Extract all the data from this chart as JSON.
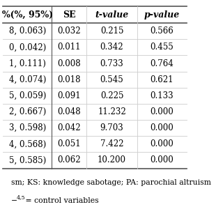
{
  "col_headers": [
    "%(%, 95%)",
    "SE",
    "t-value",
    "p-value"
  ],
  "col_headers_italic": [
    false,
    false,
    true,
    true
  ],
  "rows": [
    [
      "8, 0.063)",
      "0.032",
      "0.215",
      "0.566"
    ],
    [
      "0, 0.042)",
      "0.011",
      "0.342",
      "0.455"
    ],
    [
      "1, 0.111)",
      "0.008",
      "0.733",
      "0.764"
    ],
    [
      "4, 0.074)",
      "0.018",
      "0.545",
      "0.621"
    ],
    [
      "5, 0.059)",
      "0.091",
      "0.225",
      "0.133"
    ],
    [
      "2, 0.667)",
      "0.048",
      "11.232",
      "0.000"
    ],
    [
      "3, 0.598)",
      "0.042",
      "9.703",
      "0.000"
    ],
    [
      "4, 0.568)",
      "0.051",
      "7.422",
      "0.000"
    ],
    [
      "5, 0.585)",
      "0.062",
      "10.200",
      "0.000"
    ]
  ],
  "footnote1": "sm; KS: knowledge sabotage; PA: parochial altruism",
  "footnote2_prefix": "−",
  "footnote2_super": "4,5",
  "footnote2_suffix": " = control variables",
  "bg_color": "#ffffff",
  "separator_color": "#cccccc",
  "border_color": "#555555",
  "font_size": 8.5,
  "header_font_size": 9.0,
  "footnote_font_size": 7.8
}
